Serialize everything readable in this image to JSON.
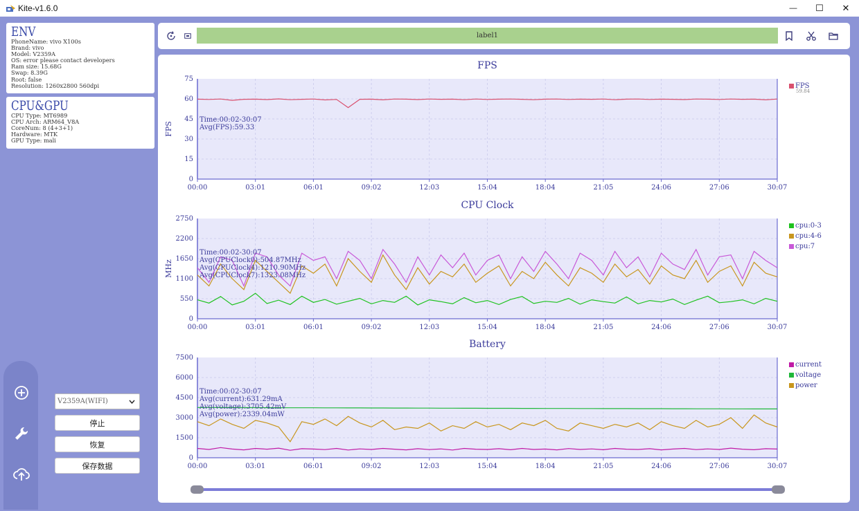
{
  "window": {
    "title": "Kite-v1.6.0",
    "minimize_glyph": "—",
    "maximize_glyph": "☐",
    "close_glyph": "✕"
  },
  "env": {
    "heading": "ENV",
    "lines": [
      "PhoneName: vivo X100s",
      "Brand: vivo",
      "Model: V2359A",
      "OS: error please contact developers",
      "Ram size: 15.68G",
      "Swap: 8.39G",
      "Root: false",
      "Resolution: 1260x2800 560dpi"
    ]
  },
  "cpugpu": {
    "heading": "CPU&GPU",
    "lines": [
      "CPU Type: MT6989",
      "CPU Arch: ARM64_V8A",
      "CoreNum: 8 (4+3+1)",
      "Hardware: MTK",
      "GPU Type: mali"
    ]
  },
  "controls": {
    "device_select": "V2359A(WIFI)",
    "stop_label": "停止",
    "resume_label": "恢复",
    "save_label": "保存数据"
  },
  "toolbar": {
    "label_text": "label1"
  },
  "icons": [
    "app-icon",
    "refresh-icon",
    "screenshot-icon",
    "bookmark-icon",
    "scissors-icon",
    "folder-icon",
    "add-device-icon",
    "wrench-icon",
    "upload-icon",
    "chevron-down-icon"
  ],
  "colors": {
    "fps": "#d9506e",
    "cpu0_3": "#1ec21e",
    "cpu4_6": "#c8961e",
    "cpu7": "#c859d8",
    "current": "#c01aa6",
    "voltage": "#1fb83a",
    "power": "#c8961e",
    "plot_bg": "#e8e8fa",
    "axis": "#6a6ad0"
  },
  "chart_data": [
    {
      "type": "line",
      "title": "FPS",
      "ylabel": "FPS",
      "ylim": [
        0,
        75
      ],
      "yticks": [
        "0",
        "15",
        "30",
        "45",
        "60",
        "75"
      ],
      "xticks": [
        "00:00",
        "03:01",
        "06:01",
        "09:02",
        "12:03",
        "15:04",
        "18:04",
        "21:05",
        "24:06",
        "27:06",
        "30:07"
      ],
      "annotation": [
        "Time:00:02-30:07",
        "Avg(FPS):59.33"
      ],
      "series": [
        {
          "name": "FPS",
          "current": "59.84",
          "values": [
            59.8,
            59.6,
            59.9,
            58.9,
            59.7,
            59.8,
            59.5,
            60.0,
            59.4,
            59.7,
            59.9,
            59.2,
            59.6,
            53.5,
            59.7,
            59.8,
            59.3,
            59.9,
            59.8,
            59.5,
            59.9,
            59.7,
            59.8,
            59.4,
            59.9,
            59.6,
            59.8,
            59.9,
            59.7,
            59.4,
            59.8,
            59.9,
            59.6,
            59.8,
            59.7,
            59.9,
            59.4,
            59.8,
            59.9,
            59.6,
            59.8,
            59.7,
            59.5,
            59.9,
            59.8,
            59.6,
            59.9,
            59.7,
            59.8,
            59.3,
            59.9
          ]
        }
      ]
    },
    {
      "type": "line",
      "title": "CPU Clock",
      "ylabel": "MHz",
      "ylim": [
        0,
        2750
      ],
      "yticks": [
        "0",
        "550",
        "1100",
        "1650",
        "2200",
        "2750"
      ],
      "xticks": [
        "00:00",
        "03:01",
        "06:01",
        "09:02",
        "12:03",
        "15:04",
        "18:04",
        "21:05",
        "24:06",
        "27:06",
        "30:07"
      ],
      "annotation": [
        "Time:00:02-30:07",
        "Avg(CPUClock0):504.87MHz",
        "Avg(CPUClock4):1210.90MHz",
        "Avg(CPUClock7):1323.08MHz"
      ],
      "series": [
        {
          "name": "cpu:0-3",
          "values": [
            520,
            430,
            610,
            380,
            480,
            700,
            420,
            510,
            390,
            620,
            450,
            530,
            400,
            480,
            560,
            410,
            500,
            450,
            620,
            380,
            520,
            470,
            410,
            580,
            440,
            500,
            390,
            530,
            610,
            420,
            480,
            450,
            560,
            400,
            520,
            470,
            430,
            600,
            410,
            500,
            460,
            540,
            390,
            510,
            620,
            440,
            470,
            520,
            410,
            560,
            480
          ]
        },
        {
          "name": "cpu:4-6",
          "values": [
            1200,
            900,
            1500,
            1100,
            800,
            1600,
            1300,
            1000,
            700,
            1450,
            1250,
            1500,
            900,
            1650,
            1300,
            1000,
            1750,
            1200,
            800,
            1400,
            950,
            1300,
            1150,
            1500,
            1000,
            1250,
            1450,
            900,
            1300,
            1100,
            1550,
            1200,
            900,
            1400,
            1250,
            1000,
            1500,
            1150,
            1350,
            950,
            1450,
            1200,
            1100,
            1600,
            1000,
            1300,
            1450,
            900,
            1550,
            1250,
            1150
          ]
        },
        {
          "name": "cpu:7",
          "values": [
            1400,
            1000,
            1700,
            1600,
            900,
            1800,
            1700,
            1200,
            900,
            1800,
            1600,
            1700,
            1100,
            1850,
            1600,
            1100,
            1900,
            1500,
            1000,
            1700,
            1200,
            1750,
            1400,
            1800,
            1200,
            1600,
            1750,
            1100,
            1700,
            1300,
            1850,
            1500,
            1100,
            1800,
            1600,
            1200,
            1850,
            1400,
            1700,
            1150,
            1800,
            1500,
            1350,
            1900,
            1200,
            1700,
            1750,
            1100,
            1850,
            1600,
            1400
          ]
        }
      ]
    },
    {
      "type": "line",
      "title": "Battery",
      "ylim": [
        0,
        7500
      ],
      "yticks": [
        "0",
        "1500",
        "3000",
        "4500",
        "6000",
        "7500"
      ],
      "xticks": [
        "00:00",
        "03:01",
        "06:01",
        "09:02",
        "12:03",
        "15:04",
        "18:04",
        "21:05",
        "24:06",
        "27:06",
        "30:07"
      ],
      "annotation": [
        "Time:00:02-30:07",
        "Avg(current):631.29mA",
        "Avg(voltage):3705.42mV",
        "Avg(power):2339.04mW"
      ],
      "series": [
        {
          "name": "current",
          "values": [
            700,
            620,
            760,
            650,
            590,
            700,
            640,
            720,
            560,
            680,
            650,
            610,
            700,
            580,
            660,
            620,
            700,
            640,
            590,
            680,
            610,
            660,
            580,
            700,
            640,
            620,
            680,
            600,
            700,
            620,
            650,
            590,
            690,
            620,
            660,
            600,
            700,
            640,
            620,
            680,
            590,
            650,
            700,
            610,
            660,
            620,
            720,
            640,
            600,
            680,
            650
          ]
        },
        {
          "name": "voltage",
          "values": [
            3760,
            3760,
            3755,
            3755,
            3750,
            3750,
            3745,
            3745,
            3740,
            3740,
            3738,
            3735,
            3732,
            3730,
            3728,
            3725,
            3722,
            3720,
            3718,
            3715,
            3712,
            3710,
            3708,
            3705,
            3702,
            3700,
            3698,
            3696,
            3694,
            3692,
            3690,
            3688,
            3686,
            3684,
            3682,
            3680,
            3678,
            3676,
            3674,
            3672,
            3670,
            3668,
            3666,
            3664,
            3662,
            3660,
            3658,
            3656,
            3654,
            3652,
            3650
          ]
        },
        {
          "name": "power",
          "values": [
            2700,
            2400,
            2900,
            2500,
            2200,
            2800,
            2600,
            2300,
            1200,
            2700,
            2500,
            2900,
            2400,
            3100,
            2600,
            2300,
            2800,
            2100,
            2300,
            2200,
            2600,
            2000,
            2400,
            2200,
            2700,
            2300,
            2500,
            2100,
            2600,
            2400,
            2800,
            2200,
            2000,
            2600,
            2400,
            2200,
            2500,
            2300,
            2600,
            2100,
            2700,
            2400,
            2200,
            2800,
            2300,
            2500,
            3000,
            2200,
            3200,
            2600,
            2300
          ]
        }
      ]
    }
  ]
}
